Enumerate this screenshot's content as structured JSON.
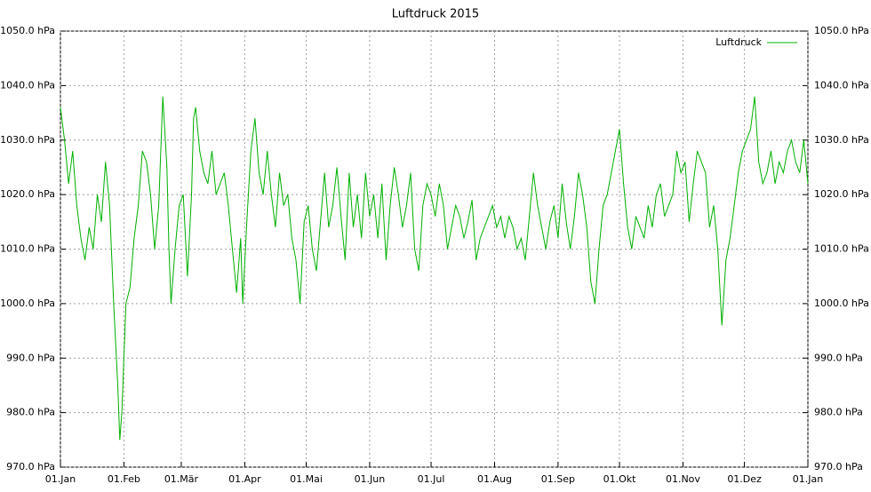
{
  "chart_data": {
    "type": "line",
    "title": "Luftdruck 2015",
    "x": [
      0,
      2,
      4,
      6,
      8,
      10,
      12,
      14,
      16,
      18,
      20,
      22,
      24,
      26,
      28,
      29,
      30,
      32,
      34,
      36,
      38,
      40,
      42,
      44,
      46,
      48,
      50,
      52,
      53,
      54,
      56,
      58,
      60,
      62,
      64,
      65,
      66,
      68,
      70,
      72,
      74,
      76,
      78,
      80,
      82,
      84,
      86,
      88,
      89,
      91,
      93,
      95,
      97,
      99,
      101,
      103,
      105,
      107,
      109,
      111,
      113,
      115,
      117,
      119,
      121,
      123,
      125,
      127,
      129,
      131,
      133,
      135,
      137,
      139,
      141,
      143,
      145,
      147,
      149,
      151,
      153,
      155,
      157,
      159,
      161,
      163,
      165,
      167,
      169,
      171,
      173,
      175,
      177,
      179,
      181,
      183,
      185,
      187,
      189,
      191,
      193,
      195,
      197,
      199,
      201,
      203,
      205,
      207,
      209,
      211,
      213,
      215,
      217,
      219,
      221,
      223,
      225,
      227,
      229,
      231,
      233,
      235,
      237,
      239,
      241,
      243,
      245,
      247,
      249,
      251,
      253,
      255,
      257,
      259,
      261,
      263,
      265,
      267,
      269,
      271,
      273,
      275,
      277,
      279,
      281,
      283,
      285,
      287,
      289,
      291,
      293,
      295,
      297,
      299,
      301,
      303,
      305,
      307,
      309,
      311,
      313,
      315,
      317,
      319,
      321,
      323,
      325,
      327,
      329,
      331,
      333,
      335,
      337,
      339,
      341,
      343,
      345,
      347,
      349,
      351,
      353,
      355,
      357,
      359,
      361,
      363,
      365
    ],
    "series": [
      {
        "name": "Luftdruck",
        "color": "#00b000",
        "values": [
          1036,
          1030,
          1022,
          1028,
          1018,
          1012,
          1008,
          1014,
          1010,
          1020,
          1015,
          1026,
          1018,
          1000,
          985,
          975,
          980,
          1000,
          1003,
          1012,
          1018,
          1028,
          1026,
          1020,
          1010,
          1018,
          1038,
          1025,
          1010,
          1000,
          1010,
          1018,
          1020,
          1005,
          1020,
          1034,
          1036,
          1028,
          1024,
          1022,
          1028,
          1020,
          1022,
          1024,
          1018,
          1010,
          1002,
          1012,
          1000,
          1015,
          1028,
          1034,
          1024,
          1020,
          1028,
          1020,
          1014,
          1024,
          1018,
          1020,
          1012,
          1008,
          1000,
          1015,
          1018,
          1010,
          1006,
          1015,
          1024,
          1014,
          1018,
          1025,
          1016,
          1008,
          1024,
          1014,
          1020,
          1012,
          1024,
          1016,
          1020,
          1012,
          1022,
          1008,
          1018,
          1025,
          1020,
          1014,
          1018,
          1024,
          1010,
          1006,
          1018,
          1022,
          1020,
          1016,
          1022,
          1018,
          1010,
          1014,
          1018,
          1016,
          1012,
          1015,
          1019,
          1008,
          1012,
          1014,
          1016,
          1018,
          1014,
          1016,
          1012,
          1016,
          1014,
          1010,
          1012,
          1008,
          1016,
          1024,
          1018,
          1014,
          1010,
          1015,
          1018,
          1012,
          1022,
          1015,
          1010,
          1016,
          1024,
          1020,
          1014,
          1004,
          1000,
          1010,
          1018,
          1020,
          1024,
          1028,
          1032,
          1022,
          1014,
          1010,
          1016,
          1014,
          1012,
          1018,
          1014,
          1020,
          1022,
          1016,
          1018,
          1020,
          1028,
          1024,
          1026,
          1015,
          1022,
          1028,
          1026,
          1024,
          1014,
          1018,
          1010,
          996,
          1008,
          1012,
          1018,
          1024,
          1028,
          1030,
          1032,
          1038,
          1026,
          1022,
          1024,
          1028,
          1022,
          1026,
          1024,
          1028,
          1030,
          1026,
          1024,
          1030,
          1022
        ]
      }
    ],
    "xlim": [
      0,
      365
    ],
    "xticks": [
      {
        "value": 0,
        "label": "01.Jan"
      },
      {
        "value": 31,
        "label": "01.Feb"
      },
      {
        "value": 59,
        "label": "01.Mär"
      },
      {
        "value": 90,
        "label": "01.Apr"
      },
      {
        "value": 120,
        "label": "01.Mai"
      },
      {
        "value": 151,
        "label": "01.Jun"
      },
      {
        "value": 181,
        "label": "01.Jul"
      },
      {
        "value": 212,
        "label": "01.Aug"
      },
      {
        "value": 243,
        "label": "01.Sep"
      },
      {
        "value": 273,
        "label": "01.Okt"
      },
      {
        "value": 304,
        "label": "01.Nov"
      },
      {
        "value": 334,
        "label": "01.Dez"
      },
      {
        "value": 365,
        "label": "01.Jan"
      }
    ],
    "ylim": [
      970,
      1050
    ],
    "yticks": [
      {
        "value": 970,
        "label": "970.0 hPa"
      },
      {
        "value": 980,
        "label": "980.0 hPa"
      },
      {
        "value": 990,
        "label": "990.0 hPa"
      },
      {
        "value": 1000,
        "label": "1000.0 hPa"
      },
      {
        "value": 1010,
        "label": "1010.0 hPa"
      },
      {
        "value": 1020,
        "label": "1020.0 hPa"
      },
      {
        "value": 1030,
        "label": "1030.0 hPa"
      },
      {
        "value": 1040,
        "label": "1040.0 hPa"
      },
      {
        "value": 1050,
        "label": "1050.0 hPa"
      }
    ],
    "grid": true,
    "legend": "top-right"
  }
}
